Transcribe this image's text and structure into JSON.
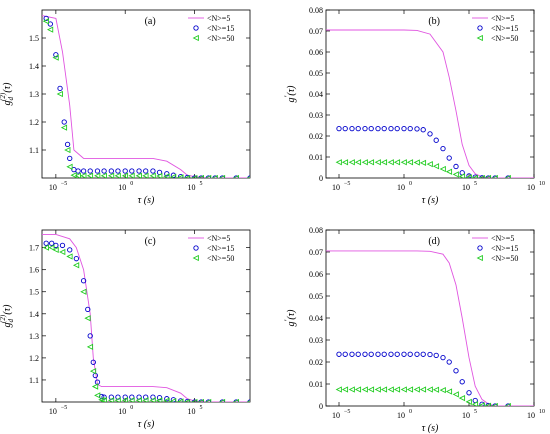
{
  "chart_data": [
    {
      "id": "a",
      "type": "line",
      "panel_label": "(a)",
      "ylabel": "g_d^(2)(τ)",
      "xlabel": "τ (s)",
      "xscale": "log",
      "xlim": [
        1e-06,
        1000000000.0
      ],
      "ylim": [
        1.0,
        1.6
      ],
      "xticks": [
        {
          "v": 1e-05,
          "label": "10"
        },
        {
          "v": 1,
          "label": "10"
        },
        {
          "v": 100000.0,
          "label": "10"
        }
      ],
      "xtick_exps": [
        "−5",
        "0",
        "5"
      ],
      "yticks": [
        1.1,
        1.2,
        1.3,
        1.4,
        1.5
      ],
      "legend": {
        "placement": "top-right",
        "entries": [
          "<N>=5",
          "<N>=15",
          "<N>=50"
        ]
      },
      "series": [
        {
          "name": "<N>=5",
          "style": "line",
          "color": "#e055e0",
          "x": [
            1e-06,
            1e-05,
            3e-05,
            0.0001,
            0.0002,
            0.001,
            0.01,
            1,
            10,
            100,
            1000,
            10000.0,
            30000.0,
            100000.0,
            1000000.0,
            10000000.0,
            1000000000.0
          ],
          "y": [
            1.58,
            1.57,
            1.45,
            1.26,
            1.1,
            1.07,
            1.07,
            1.07,
            1.07,
            1.07,
            1.06,
            1.03,
            1.01,
            1.005,
            1.0,
            1.0,
            1.0
          ]
        },
        {
          "name": "<N>=15",
          "style": "circle",
          "color": "#0000cc",
          "x": [
            2e-06,
            4e-06,
            1e-05,
            2e-05,
            4e-05,
            7e-05,
            0.0001,
            0.0002,
            0.0004,
            0.001,
            0.003,
            0.01,
            0.03,
            0.1,
            0.3,
            1,
            3,
            10,
            30,
            100,
            300,
            1000,
            3000,
            10000.0,
            30000.0,
            100000.0,
            300000.0,
            1000000.0,
            3000000.0,
            10000000.0,
            100000000.0,
            1000000000.0
          ],
          "y": [
            1.57,
            1.55,
            1.44,
            1.32,
            1.2,
            1.12,
            1.07,
            1.03,
            1.025,
            1.025,
            1.025,
            1.025,
            1.025,
            1.025,
            1.025,
            1.025,
            1.025,
            1.025,
            1.025,
            1.025,
            1.02,
            1.015,
            1.01,
            1.005,
            1.002,
            1.0,
            1.0,
            1.0,
            1.0,
            1.0,
            1.0,
            1.0
          ]
        },
        {
          "name": "<N>=50",
          "style": "triangle",
          "color": "#22cc22",
          "x": [
            2e-06,
            4e-06,
            1e-05,
            2e-05,
            4e-05,
            7e-05,
            0.0001,
            0.0002,
            0.0004,
            0.001,
            0.003,
            0.01,
            0.03,
            0.1,
            0.3,
            1,
            3,
            10,
            30,
            100,
            300,
            1000,
            3000,
            10000.0,
            30000.0,
            100000.0,
            300000.0,
            1000000.0,
            3000000.0,
            10000000.0,
            100000000.0,
            1000000000.0
          ],
          "y": [
            1.56,
            1.53,
            1.43,
            1.3,
            1.18,
            1.1,
            1.04,
            1.01,
            1.008,
            1.008,
            1.008,
            1.008,
            1.008,
            1.008,
            1.008,
            1.008,
            1.008,
            1.008,
            1.008,
            1.008,
            1.007,
            1.006,
            1.004,
            1.002,
            1.0,
            1.0,
            1.0,
            1.0,
            1.0,
            1.0,
            1.0,
            1.0
          ]
        }
      ]
    },
    {
      "id": "b",
      "type": "line",
      "panel_label": "(b)",
      "ylabel": "g'(τ)",
      "xlabel": "τ (s)",
      "xscale": "log",
      "xlim": [
        1e-06,
        10000000000.0
      ],
      "ylim": [
        0,
        0.08
      ],
      "xticks": [
        {
          "v": 1e-05,
          "label": "10"
        },
        {
          "v": 1,
          "label": "10"
        },
        {
          "v": 100000.0,
          "label": "10"
        },
        {
          "v": 10000000000.0,
          "label": "10"
        }
      ],
      "xtick_exps": [
        "−5",
        "0",
        "5",
        "10"
      ],
      "yticks": [
        0,
        0.01,
        0.02,
        0.03,
        0.04,
        0.05,
        0.06,
        0.07,
        0.08
      ],
      "legend": {
        "placement": "top-right",
        "entries": [
          "<N>=5",
          "<N>=15",
          "<N>=50"
        ]
      },
      "series": [
        {
          "name": "<N>=5",
          "style": "line",
          "color": "#e055e0",
          "x": [
            1e-06,
            0.0001,
            0.01,
            1,
            10,
            100,
            1000,
            3000,
            10000.0,
            30000.0,
            100000.0,
            300000.0,
            1000000.0,
            10000000.0,
            10000000000.0
          ],
          "y": [
            0.0705,
            0.0705,
            0.0705,
            0.0705,
            0.0703,
            0.0685,
            0.06,
            0.048,
            0.032,
            0.016,
            0.006,
            0.002,
            0.0005,
            0.0,
            0.0
          ]
        },
        {
          "name": "<N>=15",
          "style": "circle",
          "color": "#0000cc",
          "x": [
            1e-05,
            3e-05,
            0.0001,
            0.0003,
            0.001,
            0.003,
            0.01,
            0.03,
            0.1,
            0.3,
            1,
            3,
            10,
            30,
            100,
            300,
            1000,
            3000,
            10000.0,
            30000.0,
            100000.0,
            300000.0,
            1000000.0,
            3000000.0,
            10000000.0,
            100000000.0
          ],
          "y": [
            0.0235,
            0.0235,
            0.0235,
            0.0235,
            0.0235,
            0.0235,
            0.0235,
            0.0235,
            0.0235,
            0.0235,
            0.0235,
            0.0235,
            0.0234,
            0.023,
            0.021,
            0.018,
            0.014,
            0.0095,
            0.0055,
            0.0025,
            0.001,
            0.0004,
            0.0001,
            0,
            0,
            0
          ]
        },
        {
          "name": "<N>=50",
          "style": "triangle",
          "color": "#22cc22",
          "x": [
            1e-05,
            3e-05,
            0.0001,
            0.0003,
            0.001,
            0.003,
            0.01,
            0.03,
            0.1,
            0.3,
            1,
            3,
            10,
            30,
            100,
            300,
            1000,
            3000,
            10000.0,
            30000.0,
            100000.0,
            300000.0,
            1000000.0,
            3000000.0,
            10000000.0,
            100000000.0
          ],
          "y": [
            0.0075,
            0.0075,
            0.0075,
            0.0075,
            0.0075,
            0.0075,
            0.0075,
            0.0075,
            0.0075,
            0.0075,
            0.0075,
            0.0075,
            0.0074,
            0.0072,
            0.0066,
            0.0056,
            0.0043,
            0.003,
            0.0017,
            0.0008,
            0.0003,
            0.0001,
            0,
            0,
            0,
            0
          ]
        }
      ]
    },
    {
      "id": "c",
      "type": "line",
      "panel_label": "(c)",
      "ylabel": "g_d^(2)(τ)",
      "xlabel": "τ (s)",
      "xscale": "log",
      "xlim": [
        1e-06,
        1000000000.0
      ],
      "ylim": [
        1.0,
        1.78
      ],
      "xticks": [
        {
          "v": 1e-05,
          "label": "10"
        },
        {
          "v": 1,
          "label": "10"
        },
        {
          "v": 100000.0,
          "label": "10"
        }
      ],
      "xtick_exps": [
        "−5",
        "0",
        "5"
      ],
      "yticks": [
        1.1,
        1.2,
        1.3,
        1.4,
        1.5,
        1.6,
        1.7
      ],
      "legend": {
        "placement": "top-right",
        "entries": [
          "<N>=5",
          "<N>=15",
          "<N>=50"
        ]
      },
      "series": [
        {
          "name": "<N>=5",
          "style": "line",
          "color": "#e055e0",
          "x": [
            1e-06,
            1e-05,
            0.0001,
            0.0003,
            0.001,
            0.003,
            0.005,
            0.01,
            0.02,
            0.1,
            1,
            10,
            100,
            1000,
            10000.0,
            30000.0,
            100000.0,
            1000000.0,
            1000000000.0
          ],
          "y": [
            1.76,
            1.76,
            1.74,
            1.7,
            1.6,
            1.4,
            1.2,
            1.08,
            1.07,
            1.07,
            1.07,
            1.07,
            1.07,
            1.065,
            1.04,
            1.015,
            1.005,
            1.0,
            1.0
          ]
        },
        {
          "name": "<N>=15",
          "style": "circle",
          "color": "#0000cc",
          "x": [
            2e-06,
            5e-06,
            1e-05,
            3e-05,
            0.0001,
            0.0003,
            0.001,
            0.002,
            0.003,
            0.005,
            0.007,
            0.01,
            0.02,
            0.03,
            0.1,
            0.3,
            1,
            3,
            10,
            30,
            100,
            300,
            1000,
            3000,
            10000.0,
            30000.0,
            100000.0,
            300000.0,
            1000000.0,
            10000000.0,
            100000000.0,
            1000000000.0
          ],
          "y": [
            1.72,
            1.72,
            1.71,
            1.71,
            1.69,
            1.65,
            1.55,
            1.42,
            1.3,
            1.18,
            1.12,
            1.09,
            1.025,
            1.022,
            1.022,
            1.022,
            1.022,
            1.022,
            1.022,
            1.022,
            1.022,
            1.02,
            1.015,
            1.01,
            1.005,
            1.002,
            1.0,
            1.0,
            1.0,
            1.0,
            1.0,
            1.0
          ]
        },
        {
          "name": "<N>=50",
          "style": "triangle",
          "color": "#22cc22",
          "x": [
            2e-06,
            5e-06,
            1e-05,
            3e-05,
            0.0001,
            0.0003,
            0.001,
            0.002,
            0.003,
            0.005,
            0.007,
            0.01,
            0.02,
            0.03,
            0.1,
            0.3,
            1,
            3,
            10,
            30,
            100,
            300,
            1000,
            3000,
            10000.0,
            30000.0,
            100000.0,
            300000.0,
            1000000.0,
            10000000.0,
            100000000.0,
            1000000000.0
          ],
          "y": [
            1.7,
            1.7,
            1.69,
            1.68,
            1.66,
            1.62,
            1.5,
            1.38,
            1.25,
            1.14,
            1.07,
            1.03,
            1.01,
            1.008,
            1.008,
            1.008,
            1.008,
            1.008,
            1.008,
            1.008,
            1.008,
            1.007,
            1.006,
            1.004,
            1.002,
            1.0,
            1.0,
            1.0,
            1.0,
            1.0,
            1.0,
            1.0
          ]
        }
      ]
    },
    {
      "id": "d",
      "type": "line",
      "panel_label": "(d)",
      "ylabel": "g'(τ)",
      "xlabel": "τ (s)",
      "xscale": "log",
      "xlim": [
        1e-06,
        10000000000.0
      ],
      "ylim": [
        0,
        0.08
      ],
      "xticks": [
        {
          "v": 1e-05,
          "label": "10"
        },
        {
          "v": 1,
          "label": "10"
        },
        {
          "v": 100000.0,
          "label": "10"
        },
        {
          "v": 10000000000.0,
          "label": "10"
        }
      ],
      "xtick_exps": [
        "−5",
        "0",
        "5",
        "10"
      ],
      "yticks": [
        0,
        0.01,
        0.02,
        0.03,
        0.04,
        0.05,
        0.06,
        0.07,
        0.08
      ],
      "legend": {
        "placement": "top-right",
        "entries": [
          "<N>=5",
          "<N>=15",
          "<N>=50"
        ]
      },
      "series": [
        {
          "name": "<N>=5",
          "style": "line",
          "color": "#e055e0",
          "x": [
            1e-06,
            0.0001,
            0.01,
            1,
            10,
            100,
            1000,
            3000,
            10000.0,
            30000.0,
            100000.0,
            300000.0,
            1000000.0,
            3000000.0,
            10000000.0,
            10000000000.0
          ],
          "y": [
            0.0705,
            0.0705,
            0.0705,
            0.0705,
            0.0705,
            0.0703,
            0.069,
            0.065,
            0.055,
            0.04,
            0.022,
            0.009,
            0.003,
            0.001,
            0.0,
            0.0
          ]
        },
        {
          "name": "<N>=15",
          "style": "circle",
          "color": "#0000cc",
          "x": [
            1e-05,
            3e-05,
            0.0001,
            0.0003,
            0.001,
            0.003,
            0.01,
            0.03,
            0.1,
            0.3,
            1,
            3,
            10,
            30,
            100,
            300,
            1000,
            3000,
            10000.0,
            30000.0,
            100000.0,
            300000.0,
            1000000.0,
            3000000.0,
            10000000.0,
            100000000.0
          ],
          "y": [
            0.0235,
            0.0235,
            0.0235,
            0.0235,
            0.0235,
            0.0235,
            0.0235,
            0.0235,
            0.0235,
            0.0235,
            0.0235,
            0.0235,
            0.0235,
            0.0235,
            0.0234,
            0.023,
            0.022,
            0.02,
            0.016,
            0.011,
            0.006,
            0.0025,
            0.0008,
            0.0002,
            0,
            0
          ]
        },
        {
          "name": "<N>=50",
          "style": "triangle",
          "color": "#22cc22",
          "x": [
            1e-05,
            3e-05,
            0.0001,
            0.0003,
            0.001,
            0.003,
            0.01,
            0.03,
            0.1,
            0.3,
            1,
            3,
            10,
            30,
            100,
            300,
            1000,
            3000,
            10000.0,
            30000.0,
            100000.0,
            300000.0,
            1000000.0,
            3000000.0,
            10000000.0,
            100000000.0
          ],
          "y": [
            0.0075,
            0.0075,
            0.0075,
            0.0075,
            0.0075,
            0.0075,
            0.0075,
            0.0075,
            0.0075,
            0.0075,
            0.0075,
            0.0075,
            0.0075,
            0.0075,
            0.0075,
            0.0074,
            0.0072,
            0.0066,
            0.0053,
            0.0036,
            0.0019,
            0.0008,
            0.0003,
            0.0001,
            0,
            0
          ]
        }
      ]
    }
  ]
}
